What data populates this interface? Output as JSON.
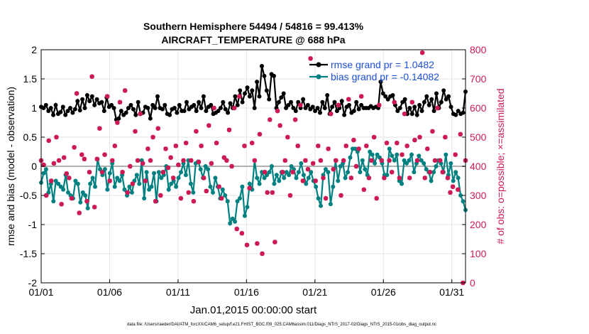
{
  "colors": {
    "rmse": "#000000",
    "bias": "#008080",
    "obs": "#cc1a55",
    "zero_line": "#b0b0b0",
    "legend_text": "#1f50d6"
  },
  "chart_data": {
    "type": "line",
    "title": "Southern Hemisphere 54494 / 54816 = 99.413%",
    "subtitle": "AIRCRAFT_TEMPERATURE @ 688 hPa",
    "xlabel": "Jan.01,2015 00:00:00 start",
    "ylabel": "rmse and bias (model - observation)",
    "ylabel_right": "# of obs: o=possible; ×=assimilated",
    "footer": "data file: /Users/raeder/DAI/ATM_forcXX/CAM6_setup/f.e21.FHIST_BGC.f09_025.CAM6assim.011/Diags_NTrS_2017-02/Diags_NTrS_2015-01/obs_diag_output.nc",
    "x_ticks": [
      "01/01",
      "01/06",
      "01/11",
      "01/16",
      "01/21",
      "01/26",
      "01/31"
    ],
    "y_ticks": [
      "2",
      "1.5",
      "1",
      "0.5",
      "0",
      "-0.5",
      "-1",
      "-1.5",
      "-2"
    ],
    "y2_ticks": [
      "800",
      "700",
      "600",
      "500",
      "400",
      "300",
      "200",
      "100",
      "0"
    ],
    "ylim": [
      -2,
      2
    ],
    "y2lim": [
      0,
      800
    ],
    "xlim": [
      0,
      31
    ],
    "grid": true,
    "legend": {
      "position": "top-right"
    },
    "series": [
      {
        "name": "rmse grand pr = 1.0482",
        "axis": "left",
        "values": [
          1.02,
          1.0,
          1.05,
          0.95,
          1.0,
          0.88,
          1.05,
          0.9,
          0.93,
          1.02,
          0.88,
          0.95,
          1.0,
          0.92,
          0.98,
          1.12,
          0.96,
          1.15,
          1.0,
          1.22,
          1.12,
          1.2,
          1.05,
          1.15,
          1.08,
          1.1,
          0.95,
          1.18,
          1.02,
          1.05,
          1.0,
          0.8,
          0.82,
          0.95,
          0.88,
          0.92,
          1.0,
          1.05,
          0.98,
          0.88,
          1.1,
          0.9,
          0.92,
          1.02,
          1.0,
          0.82,
          1.05,
          1.0,
          1.2,
          1.0,
          0.98,
          1.05,
          0.9,
          0.88,
          0.98,
          1.0,
          0.92,
          1.05,
          0.95,
          0.95,
          1.1,
          0.98,
          1.02,
          1.05,
          0.95,
          1.1,
          1.0,
          1.2,
          0.95,
          1.02,
          1.05,
          0.9,
          0.92,
          0.95,
          1.0,
          1.1,
          0.98,
          0.92,
          1.08,
          1.0,
          1.2,
          1.05,
          1.3,
          1.1,
          1.25,
          1.35,
          1.2,
          1.3,
          1.0,
          1.45,
          1.2,
          1.72,
          1.55,
          1.3,
          1.15,
          1.58,
          1.55,
          1.0,
          1.1,
          1.18,
          1.25,
          1.0,
          1.05,
          1.1,
          1.0,
          0.95,
          1.1,
          1.0,
          1.15,
          1.0,
          1.05,
          0.98,
          1.02,
          0.95,
          1.0,
          0.92,
          1.1,
          1.0,
          1.22,
          0.9,
          1.02,
          1.1,
          0.95,
          1.0,
          1.12,
          0.88,
          1.02,
          1.05,
          0.92,
          0.95,
          1.1,
          0.98,
          1.05,
          1.0,
          1.0,
          1.0,
          1.03,
          1.0,
          1.02,
          1.0,
          1.45,
          1.25,
          1.2,
          1.15,
          1.2,
          1.22,
          1.05,
          0.95,
          1.0,
          1.1,
          1.15,
          0.9,
          1.0,
          0.9,
          1.02,
          0.88,
          1.05,
          0.95,
          1.1,
          1.2,
          1.05,
          1.15,
          0.95,
          1.25,
          1.0,
          1.1,
          1.3,
          1.15,
          1.2,
          1.02,
          0.9,
          0.88,
          0.95,
          0.9,
          0.92,
          1.28
        ]
      },
      {
        "name": "bias grand pr = -0.14082",
        "axis": "left",
        "values": [
          -0.28,
          -0.12,
          -0.05,
          -0.45,
          -0.3,
          -0.6,
          -0.25,
          -0.3,
          -0.35,
          -0.4,
          -0.15,
          -0.45,
          -0.5,
          -0.55,
          -0.25,
          -0.3,
          -0.62,
          -0.45,
          -0.5,
          -0.72,
          -0.3,
          -0.2,
          -0.35,
          0.12,
          -0.05,
          -0.15,
          -0.05,
          -0.4,
          -0.12,
          0.05,
          -0.35,
          -0.2,
          -0.25,
          -0.15,
          -0.4,
          -0.5,
          -0.35,
          -0.45,
          -0.25,
          -0.15,
          -0.3,
          0.1,
          -0.55,
          -0.1,
          -0.4,
          -0.35,
          -0.12,
          -0.6,
          -0.1,
          -0.2,
          -0.15,
          0.0,
          -0.4,
          -0.3,
          -0.25,
          -0.35,
          -0.2,
          -0.1,
          0.05,
          -0.15,
          0.1,
          -0.3,
          -0.45,
          0.05,
          0.08,
          -0.05,
          -0.2,
          0.0,
          -0.05,
          -0.35,
          -0.45,
          -0.2,
          -0.35,
          -0.55,
          -0.4,
          -0.5,
          -0.6,
          -0.98,
          -0.9,
          -0.95,
          -0.6,
          -0.55,
          -0.35,
          -0.85,
          -0.7,
          -0.3,
          -0.4,
          0.1,
          -0.2,
          -0.3,
          -0.1,
          -0.2,
          -0.15,
          -0.1,
          0.0,
          -0.3,
          -0.15,
          -0.25,
          -0.1,
          -0.2,
          -0.1,
          -0.15,
          0.0,
          -0.05,
          -0.2,
          -0.1,
          0.05,
          -0.15,
          -0.3,
          -0.2,
          -0.1,
          -0.25,
          -0.35,
          -0.55,
          -0.68,
          -0.15,
          -0.05,
          -0.1,
          -0.65,
          -0.35,
          0.1,
          -0.25,
          0.0,
          0.05,
          -0.2,
          -0.1,
          0.15,
          0.3,
          0.3,
          0.25,
          -0.1,
          0.1,
          -0.05,
          -0.15,
          0.25,
          0.2,
          0.05,
          0.2,
          0.15,
          0.05,
          -0.15,
          -0.15,
          0.3,
          0.18,
          0.1,
          0.2,
          -0.25,
          -0.3,
          0.1,
          0.05,
          0.1,
          0.2,
          -0.1,
          0.05,
          0.18,
          0.1,
          0.05,
          -0.05,
          -0.1,
          -0.25,
          -0.1,
          0.0,
          0.1,
          0.05,
          -0.1,
          0.2,
          -0.15,
          0.05,
          -0.25,
          -0.1,
          -0.2,
          -0.5,
          -0.6,
          -0.75
        ]
      }
    ],
    "obs_assimilated": {
      "axis": "right",
      "values": [
        420,
        405,
        300,
        488,
        350,
        410,
        500,
        420,
        270,
        430,
        375,
        360,
        290,
        465,
        650,
        240,
        440,
        425,
        280,
        380,
        708,
        260,
        425,
        530,
        380,
        440,
        640,
        350,
        420,
        470,
        550,
        620,
        380,
        660,
        310,
        400,
        340,
        520,
        420,
        580,
        410,
        350,
        460,
        420,
        500,
        280,
        530,
        300,
        380,
        460,
        395,
        430,
        360,
        470,
        405,
        290,
        420,
        480,
        310,
        420,
        280,
        520,
        415,
        470,
        360,
        315,
        540,
        410,
        600,
        480,
        330,
        290,
        430,
        420,
        525,
        400,
        600,
        185,
        640,
        170,
        470,
        130,
        325,
        480,
        420,
        135,
        510,
        100,
        380,
        310,
        560,
        310,
        140,
        590,
        540,
        380,
        420,
        500,
        300,
        380,
        560,
        470,
        610,
        350,
        420,
        390,
        770,
        410,
        350,
        470,
        420,
        360,
        290,
        460,
        580,
        390,
        420,
        610,
        300,
        420,
        470,
        630,
        360,
        490,
        400,
        460,
        640,
        320,
        470,
        360,
        420,
        500,
        290,
        610,
        420,
        360,
        480,
        420,
        380,
        620,
        480,
        360,
        440,
        580,
        470,
        360,
        620,
        490,
        420,
        500,
        790,
        360,
        460,
        380,
        520,
        420,
        600,
        420,
        380,
        500,
        360,
        310,
        330,
        440,
        320,
        510,
        0,
        420
      ]
    },
    "obs_possible": {
      "axis": "right",
      "values": [
        420,
        405,
        300,
        488,
        350,
        410,
        500,
        420,
        270,
        430,
        375,
        360,
        290,
        465,
        650,
        240,
        440,
        425,
        280,
        380,
        708,
        260,
        425,
        530,
        380,
        440,
        640,
        350,
        420,
        470,
        550,
        620,
        380,
        660,
        310,
        400,
        340,
        520,
        420,
        580,
        410,
        350,
        460,
        420,
        500,
        280,
        530,
        300,
        380,
        460,
        395,
        430,
        360,
        470,
        405,
        290,
        420,
        480,
        310,
        420,
        280,
        520,
        415,
        470,
        360,
        315,
        540,
        410,
        600,
        480,
        330,
        290,
        430,
        420,
        525,
        400,
        600,
        185,
        640,
        170,
        470,
        130,
        325,
        480,
        420,
        135,
        510,
        100,
        380,
        310,
        560,
        310,
        140,
        590,
        540,
        380,
        420,
        500,
        300,
        380,
        560,
        470,
        610,
        350,
        420,
        390,
        770,
        410,
        350,
        470,
        420,
        360,
        290,
        460,
        580,
        390,
        420,
        610,
        300,
        420,
        470,
        630,
        360,
        490,
        400,
        460,
        640,
        320,
        470,
        360,
        420,
        500,
        290,
        610,
        420,
        360,
        480,
        420,
        380,
        620,
        480,
        360,
        440,
        580,
        470,
        360,
        620,
        490,
        420,
        500,
        790,
        360,
        460,
        380,
        520,
        420,
        600,
        420,
        380,
        500,
        360,
        310,
        330,
        440,
        320,
        510,
        0,
        420
      ]
    }
  }
}
